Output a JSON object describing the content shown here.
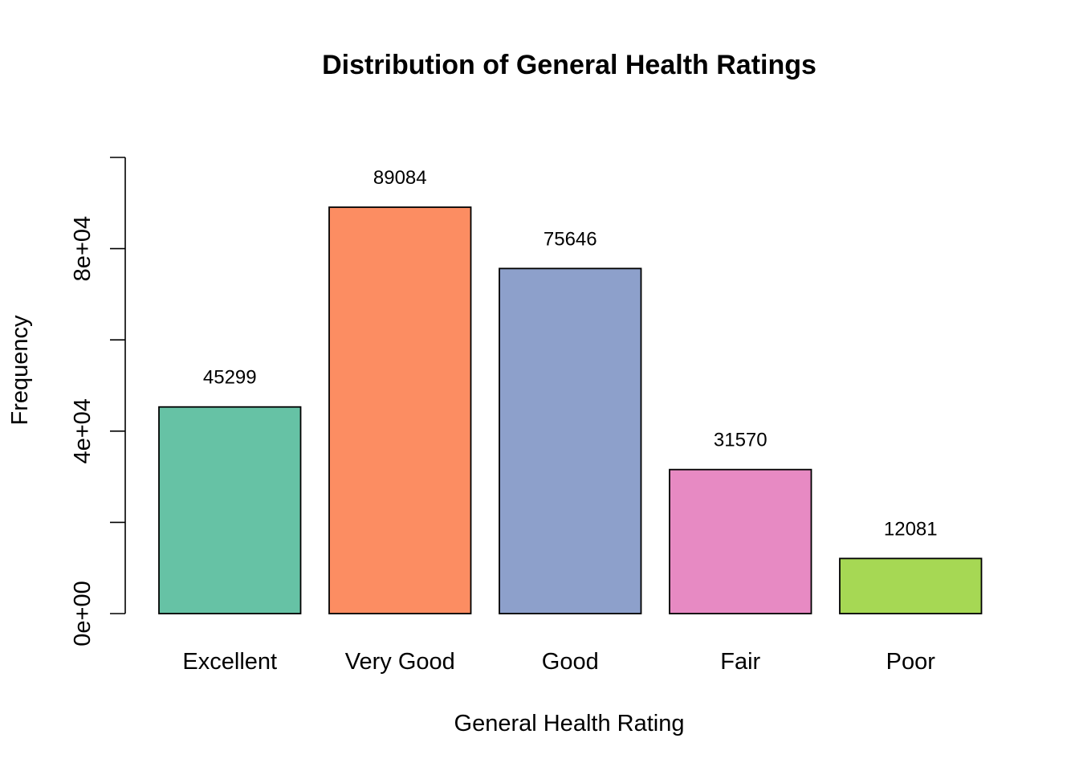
{
  "chart_data": {
    "type": "bar",
    "title": "Distribution of General Health Ratings",
    "xlabel": "General Health Rating",
    "ylabel": "Frequency",
    "categories": [
      "Excellent",
      "Very Good",
      "Good",
      "Fair",
      "Poor"
    ],
    "values": [
      45299,
      89084,
      75646,
      31570,
      12081
    ],
    "value_labels": [
      "45299",
      "89084",
      "75646",
      "31570",
      "12081"
    ],
    "colors": [
      "#66C2A5",
      "#FC8D62",
      "#8DA0CB",
      "#E78AC3",
      "#A6D854"
    ],
    "ylim": [
      0,
      100000
    ],
    "y_ticks": [
      0,
      20000,
      40000,
      60000,
      80000,
      100000
    ],
    "y_tick_labels": [
      {
        "value": 0,
        "label": "0e+00"
      },
      {
        "value": 40000,
        "label": "4e+04"
      },
      {
        "value": 80000,
        "label": "8e+04"
      }
    ],
    "grid": false,
    "legend": "none"
  }
}
